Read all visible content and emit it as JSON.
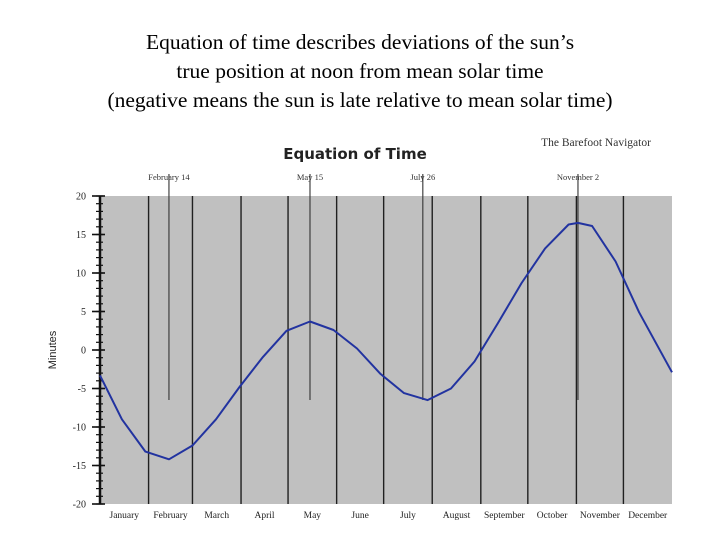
{
  "slide_title": {
    "line1": "Equation of time describes deviations of the sun’s",
    "line2": "true position at noon from mean solar time",
    "line3": "(negative means the sun is late relative to mean solar time)"
  },
  "chart_data": {
    "type": "line",
    "title": "Equation of Time",
    "credit": "The Barefoot Navigator",
    "xlabel": "",
    "ylabel": "Minutes",
    "ylim": [
      -20,
      20
    ],
    "yticks": [
      20,
      15,
      10,
      5,
      0,
      -5,
      -10,
      -15,
      -20
    ],
    "xlim": [
      1,
      366
    ],
    "grid": true,
    "categories": [
      "January",
      "February",
      "March",
      "April",
      "May",
      "June",
      "July",
      "August",
      "September",
      "October",
      "November",
      "December"
    ],
    "category_days": [
      1,
      32,
      60,
      91,
      121,
      152,
      182,
      213,
      244,
      274,
      305,
      335
    ],
    "annotations": [
      {
        "label": "February 14",
        "day": 45
      },
      {
        "label": "May 15",
        "day": 135
      },
      {
        "label": "July 26",
        "day": 207
      },
      {
        "label": "November 2",
        "day": 306
      }
    ],
    "series": [
      {
        "x": [
          1,
          15,
          30,
          45,
          60,
          75,
          90,
          105,
          120,
          135,
          150,
          165,
          180,
          195,
          210,
          225,
          240,
          255,
          270,
          285,
          300,
          306,
          315,
          330,
          345,
          366
        ],
        "y": [
          -3.3,
          -9.0,
          -13.2,
          -14.2,
          -12.4,
          -9.0,
          -4.8,
          -0.9,
          2.5,
          3.7,
          2.6,
          0.2,
          -3.1,
          -5.6,
          -6.5,
          -5.0,
          -1.5,
          3.5,
          8.7,
          13.2,
          16.3,
          16.5,
          16.1,
          11.5,
          4.9,
          -2.9
        ]
      }
    ],
    "colors": {
      "line": "#2233a0",
      "plot_bg": "#c0c0c0",
      "grid": "#202020"
    }
  }
}
